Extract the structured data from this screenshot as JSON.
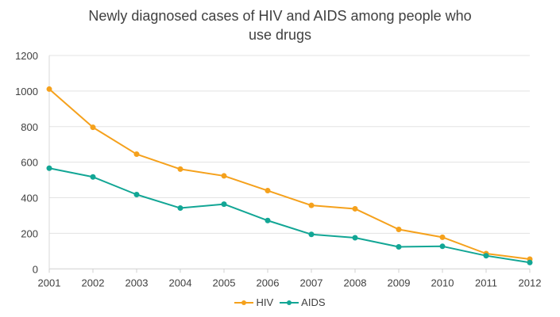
{
  "chart_data": {
    "type": "line",
    "title": "Newly diagnosed cases of HIV and AIDS among people who use drugs",
    "title_lines": [
      "Newly diagnosed cases of HIV and AIDS among people who",
      "use drugs"
    ],
    "xlabel": "",
    "ylabel": "",
    "categories": [
      "2001",
      "2002",
      "2003",
      "2004",
      "2005",
      "2006",
      "2007",
      "2008",
      "2009",
      "2010",
      "2011",
      "2012"
    ],
    "ylim": [
      0,
      1200
    ],
    "yticks": [
      0,
      200,
      400,
      600,
      800,
      1000,
      1200
    ],
    "grid": true,
    "legend_position": "bottom",
    "series": [
      {
        "name": "HIV",
        "color": "#F5A11C",
        "values": [
          1011,
          796,
          645,
          561,
          523,
          440,
          357,
          338,
          222,
          178,
          86,
          55
        ]
      },
      {
        "name": "AIDS",
        "color": "#12A695",
        "values": [
          566,
          517,
          418,
          342,
          364,
          272,
          194,
          175,
          124,
          127,
          74,
          36
        ]
      }
    ]
  }
}
